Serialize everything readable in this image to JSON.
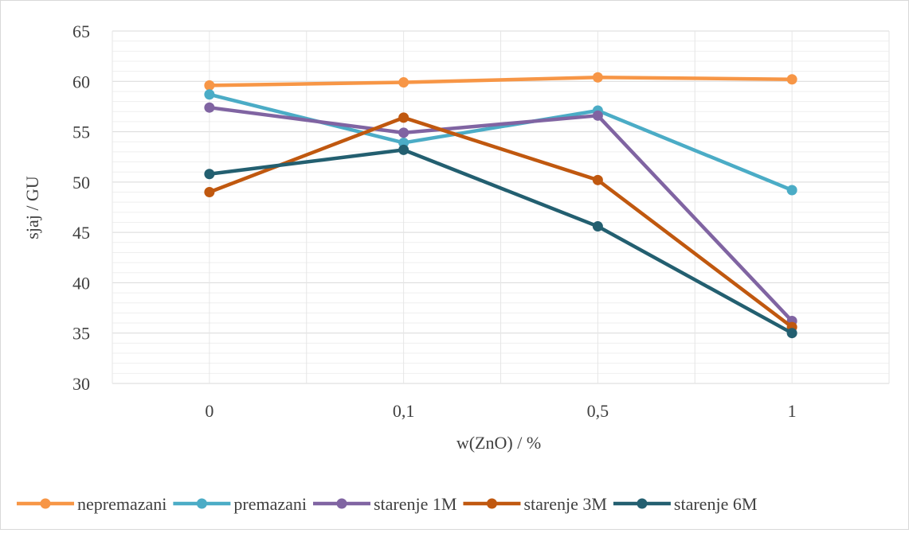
{
  "chart_data": {
    "type": "line",
    "categories": [
      "0",
      "0,1",
      "0,5",
      "1"
    ],
    "xlabel": "w(ZnO) / %",
    "ylabel": "sjaj / GU",
    "ylim": [
      30,
      65
    ],
    "yticks": [
      30,
      35,
      40,
      45,
      50,
      55,
      60,
      65
    ],
    "y_minor_step": 1,
    "grid": true,
    "legend_position": "bottom",
    "series": [
      {
        "name": "nepremazani",
        "color": "#F79646",
        "values": [
          59.6,
          59.9,
          60.4,
          60.2
        ]
      },
      {
        "name": "premazani",
        "color": "#4BACC6",
        "values": [
          58.7,
          53.9,
          57.1,
          49.2
        ]
      },
      {
        "name": "starenje 1M",
        "color": "#8064A2",
        "values": [
          57.4,
          54.9,
          56.6,
          36.2
        ]
      },
      {
        "name": "starenje 3M",
        "color": "#C0580F",
        "values": [
          49.0,
          56.4,
          50.2,
          35.6
        ]
      },
      {
        "name": "starenje 6M",
        "color": "#235F70",
        "values": [
          50.8,
          53.2,
          45.6,
          35.0
        ]
      }
    ]
  }
}
